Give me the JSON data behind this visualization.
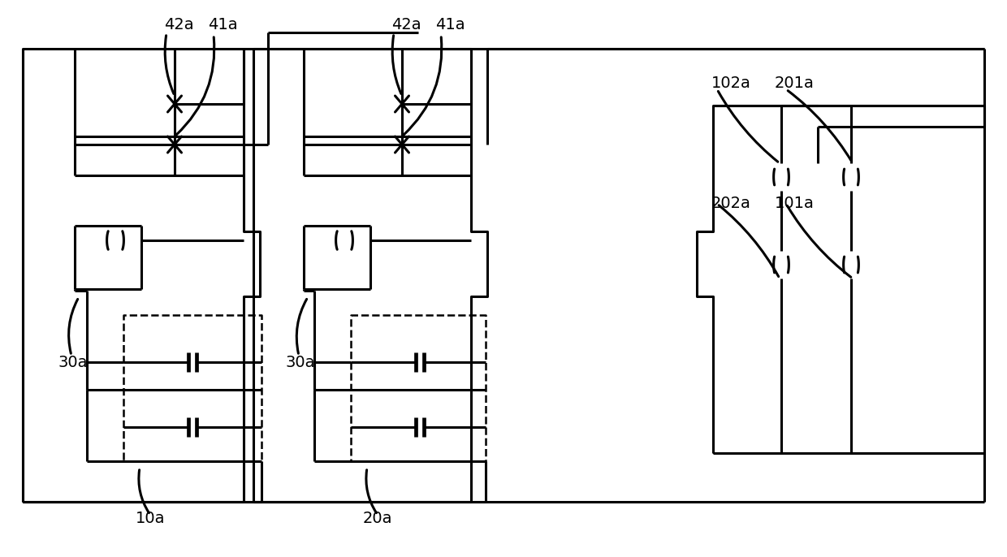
{
  "bg": "#ffffff",
  "lc": "#000000",
  "lw": 2.2,
  "lw_thick": 3.0,
  "lw_dash": 1.8,
  "labels": {
    "42a_left": [
      218,
      648,
      "42a"
    ],
    "41a_left": [
      270,
      648,
      "41a"
    ],
    "42a_mid": [
      498,
      648,
      "42a"
    ],
    "41a_mid": [
      550,
      648,
      "41a"
    ],
    "102a": [
      895,
      580,
      "102a"
    ],
    "201a": [
      970,
      580,
      "201a"
    ],
    "202a": [
      895,
      430,
      "202a"
    ],
    "101a": [
      970,
      430,
      "101a"
    ],
    "30a_left": [
      88,
      248,
      "30a"
    ],
    "30a_mid": [
      368,
      248,
      "30a"
    ],
    "10a": [
      185,
      52,
      "10a"
    ],
    "20a": [
      465,
      52,
      "20a"
    ]
  }
}
